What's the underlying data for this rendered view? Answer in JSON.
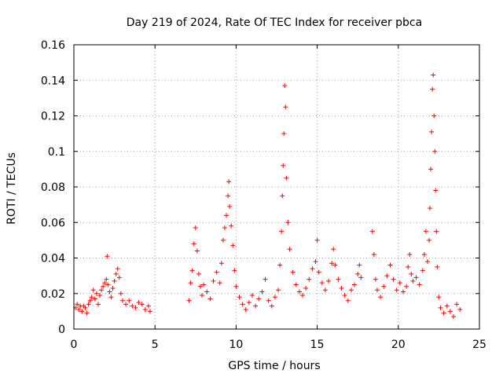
{
  "chart_data": {
    "type": "scatter",
    "title": "Day 219 of 2024, Rate Of TEC Index for receiver pbca",
    "xlabel": "GPS time / hours",
    "ylabel": "ROTI / TECUs",
    "xlim": [
      0,
      25
    ],
    "ylim": [
      0,
      0.16
    ],
    "xticks": [
      0,
      5,
      10,
      15,
      20,
      25
    ],
    "xtick_labels": [
      "0",
      "5",
      "10",
      "15",
      "20",
      "25"
    ],
    "yticks": [
      0,
      0.02,
      0.04,
      0.06,
      0.08,
      0.1,
      0.12,
      0.14,
      0.16
    ],
    "ytick_labels": [
      "0",
      "0.02",
      "0.04",
      "0.06",
      "0.08",
      "0.1",
      "0.12",
      "0.14",
      "0.16"
    ],
    "grid": true,
    "legend": "none",
    "marker": "plus",
    "series": [
      {
        "color": "#ff0000",
        "points": [
          [
            0.1,
            0.012
          ],
          [
            0.2,
            0.014
          ],
          [
            0.3,
            0.011
          ],
          [
            0.4,
            0.013
          ],
          [
            0.5,
            0.01
          ],
          [
            0.6,
            0.013
          ],
          [
            0.7,
            0.012
          ],
          [
            0.8,
            0.009
          ],
          [
            0.9,
            0.014
          ],
          [
            1.0,
            0.016
          ],
          [
            1.1,
            0.018
          ],
          [
            1.2,
            0.022
          ],
          [
            1.3,
            0.017
          ],
          [
            1.4,
            0.02
          ],
          [
            1.5,
            0.014
          ],
          [
            1.6,
            0.019
          ],
          [
            1.7,
            0.022
          ],
          [
            1.8,
            0.024
          ],
          [
            1.9,
            0.026
          ],
          [
            2.0,
            0.028
          ],
          [
            2.05,
            0.041
          ],
          [
            2.1,
            0.025
          ],
          [
            2.2,
            0.021
          ],
          [
            2.3,
            0.018
          ],
          [
            2.4,
            0.023
          ],
          [
            2.5,
            0.027
          ],
          [
            2.6,
            0.031
          ],
          [
            2.7,
            0.034
          ],
          [
            2.8,
            0.029
          ],
          [
            2.9,
            0.02
          ],
          [
            3.0,
            0.016
          ],
          [
            3.2,
            0.014
          ],
          [
            3.4,
            0.016
          ],
          [
            3.6,
            0.013
          ],
          [
            3.8,
            0.012
          ],
          [
            4.0,
            0.015
          ],
          [
            4.2,
            0.014
          ],
          [
            4.4,
            0.011
          ],
          [
            4.6,
            0.013
          ],
          [
            4.7,
            0.01
          ],
          [
            7.1,
            0.016
          ],
          [
            7.2,
            0.026
          ],
          [
            7.3,
            0.033
          ],
          [
            7.4,
            0.048
          ],
          [
            7.5,
            0.057
          ],
          [
            7.6,
            0.044
          ],
          [
            7.7,
            0.031
          ],
          [
            7.8,
            0.024
          ],
          [
            7.9,
            0.019
          ],
          [
            8.0,
            0.025
          ],
          [
            8.2,
            0.021
          ],
          [
            8.4,
            0.017
          ],
          [
            8.6,
            0.027
          ],
          [
            8.8,
            0.032
          ],
          [
            9.0,
            0.026
          ],
          [
            9.1,
            0.037
          ],
          [
            9.2,
            0.05
          ],
          [
            9.3,
            0.057
          ],
          [
            9.4,
            0.064
          ],
          [
            9.5,
            0.075
          ],
          [
            9.55,
            0.083
          ],
          [
            9.6,
            0.069
          ],
          [
            9.7,
            0.058
          ],
          [
            9.8,
            0.047
          ],
          [
            9.9,
            0.033
          ],
          [
            10.0,
            0.024
          ],
          [
            10.2,
            0.018
          ],
          [
            10.4,
            0.014
          ],
          [
            10.6,
            0.011
          ],
          [
            10.8,
            0.015
          ],
          [
            11.0,
            0.019
          ],
          [
            11.2,
            0.013
          ],
          [
            11.4,
            0.017
          ],
          [
            11.6,
            0.021
          ],
          [
            11.8,
            0.028
          ],
          [
            12.0,
            0.016
          ],
          [
            12.2,
            0.013
          ],
          [
            12.4,
            0.018
          ],
          [
            12.6,
            0.022
          ],
          [
            12.7,
            0.036
          ],
          [
            12.8,
            0.055
          ],
          [
            12.85,
            0.075
          ],
          [
            12.9,
            0.092
          ],
          [
            12.95,
            0.11
          ],
          [
            13.0,
            0.137
          ],
          [
            13.05,
            0.125
          ],
          [
            13.1,
            0.085
          ],
          [
            13.2,
            0.06
          ],
          [
            13.3,
            0.045
          ],
          [
            13.5,
            0.032
          ],
          [
            13.7,
            0.025
          ],
          [
            13.9,
            0.021
          ],
          [
            14.1,
            0.019
          ],
          [
            14.3,
            0.023
          ],
          [
            14.5,
            0.028
          ],
          [
            14.7,
            0.034
          ],
          [
            14.9,
            0.038
          ],
          [
            15.0,
            0.05
          ],
          [
            15.1,
            0.032
          ],
          [
            15.3,
            0.026
          ],
          [
            15.5,
            0.022
          ],
          [
            15.7,
            0.027
          ],
          [
            15.9,
            0.037
          ],
          [
            16.0,
            0.045
          ],
          [
            16.1,
            0.036
          ],
          [
            16.3,
            0.028
          ],
          [
            16.5,
            0.023
          ],
          [
            16.7,
            0.019
          ],
          [
            16.9,
            0.016
          ],
          [
            17.1,
            0.022
          ],
          [
            17.3,
            0.025
          ],
          [
            17.5,
            0.031
          ],
          [
            17.6,
            0.036
          ],
          [
            17.7,
            0.029
          ],
          [
            18.4,
            0.055
          ],
          [
            18.5,
            0.042
          ],
          [
            18.6,
            0.028
          ],
          [
            18.7,
            0.022
          ],
          [
            18.9,
            0.018
          ],
          [
            19.1,
            0.024
          ],
          [
            19.3,
            0.03
          ],
          [
            19.5,
            0.036
          ],
          [
            19.7,
            0.028
          ],
          [
            19.9,
            0.022
          ],
          [
            20.1,
            0.026
          ],
          [
            20.3,
            0.021
          ],
          [
            20.5,
            0.024
          ],
          [
            20.6,
            0.035
          ],
          [
            20.7,
            0.042
          ],
          [
            20.8,
            0.031
          ],
          [
            20.9,
            0.027
          ],
          [
            21.1,
            0.029
          ],
          [
            21.3,
            0.025
          ],
          [
            21.5,
            0.033
          ],
          [
            21.6,
            0.042
          ],
          [
            21.7,
            0.055
          ],
          [
            21.8,
            0.038
          ],
          [
            21.9,
            0.05
          ],
          [
            21.95,
            0.068
          ],
          [
            22.0,
            0.09
          ],
          [
            22.05,
            0.111
          ],
          [
            22.1,
            0.135
          ],
          [
            22.15,
            0.143
          ],
          [
            22.2,
            0.12
          ],
          [
            22.25,
            0.1
          ],
          [
            22.3,
            0.078
          ],
          [
            22.35,
            0.055
          ],
          [
            22.4,
            0.035
          ],
          [
            22.5,
            0.018
          ],
          [
            22.6,
            0.012
          ],
          [
            22.8,
            0.009
          ],
          [
            23.0,
            0.013
          ],
          [
            23.2,
            0.01
          ],
          [
            23.4,
            0.007
          ],
          [
            23.6,
            0.014
          ],
          [
            23.8,
            0.011
          ]
        ]
      }
    ]
  }
}
